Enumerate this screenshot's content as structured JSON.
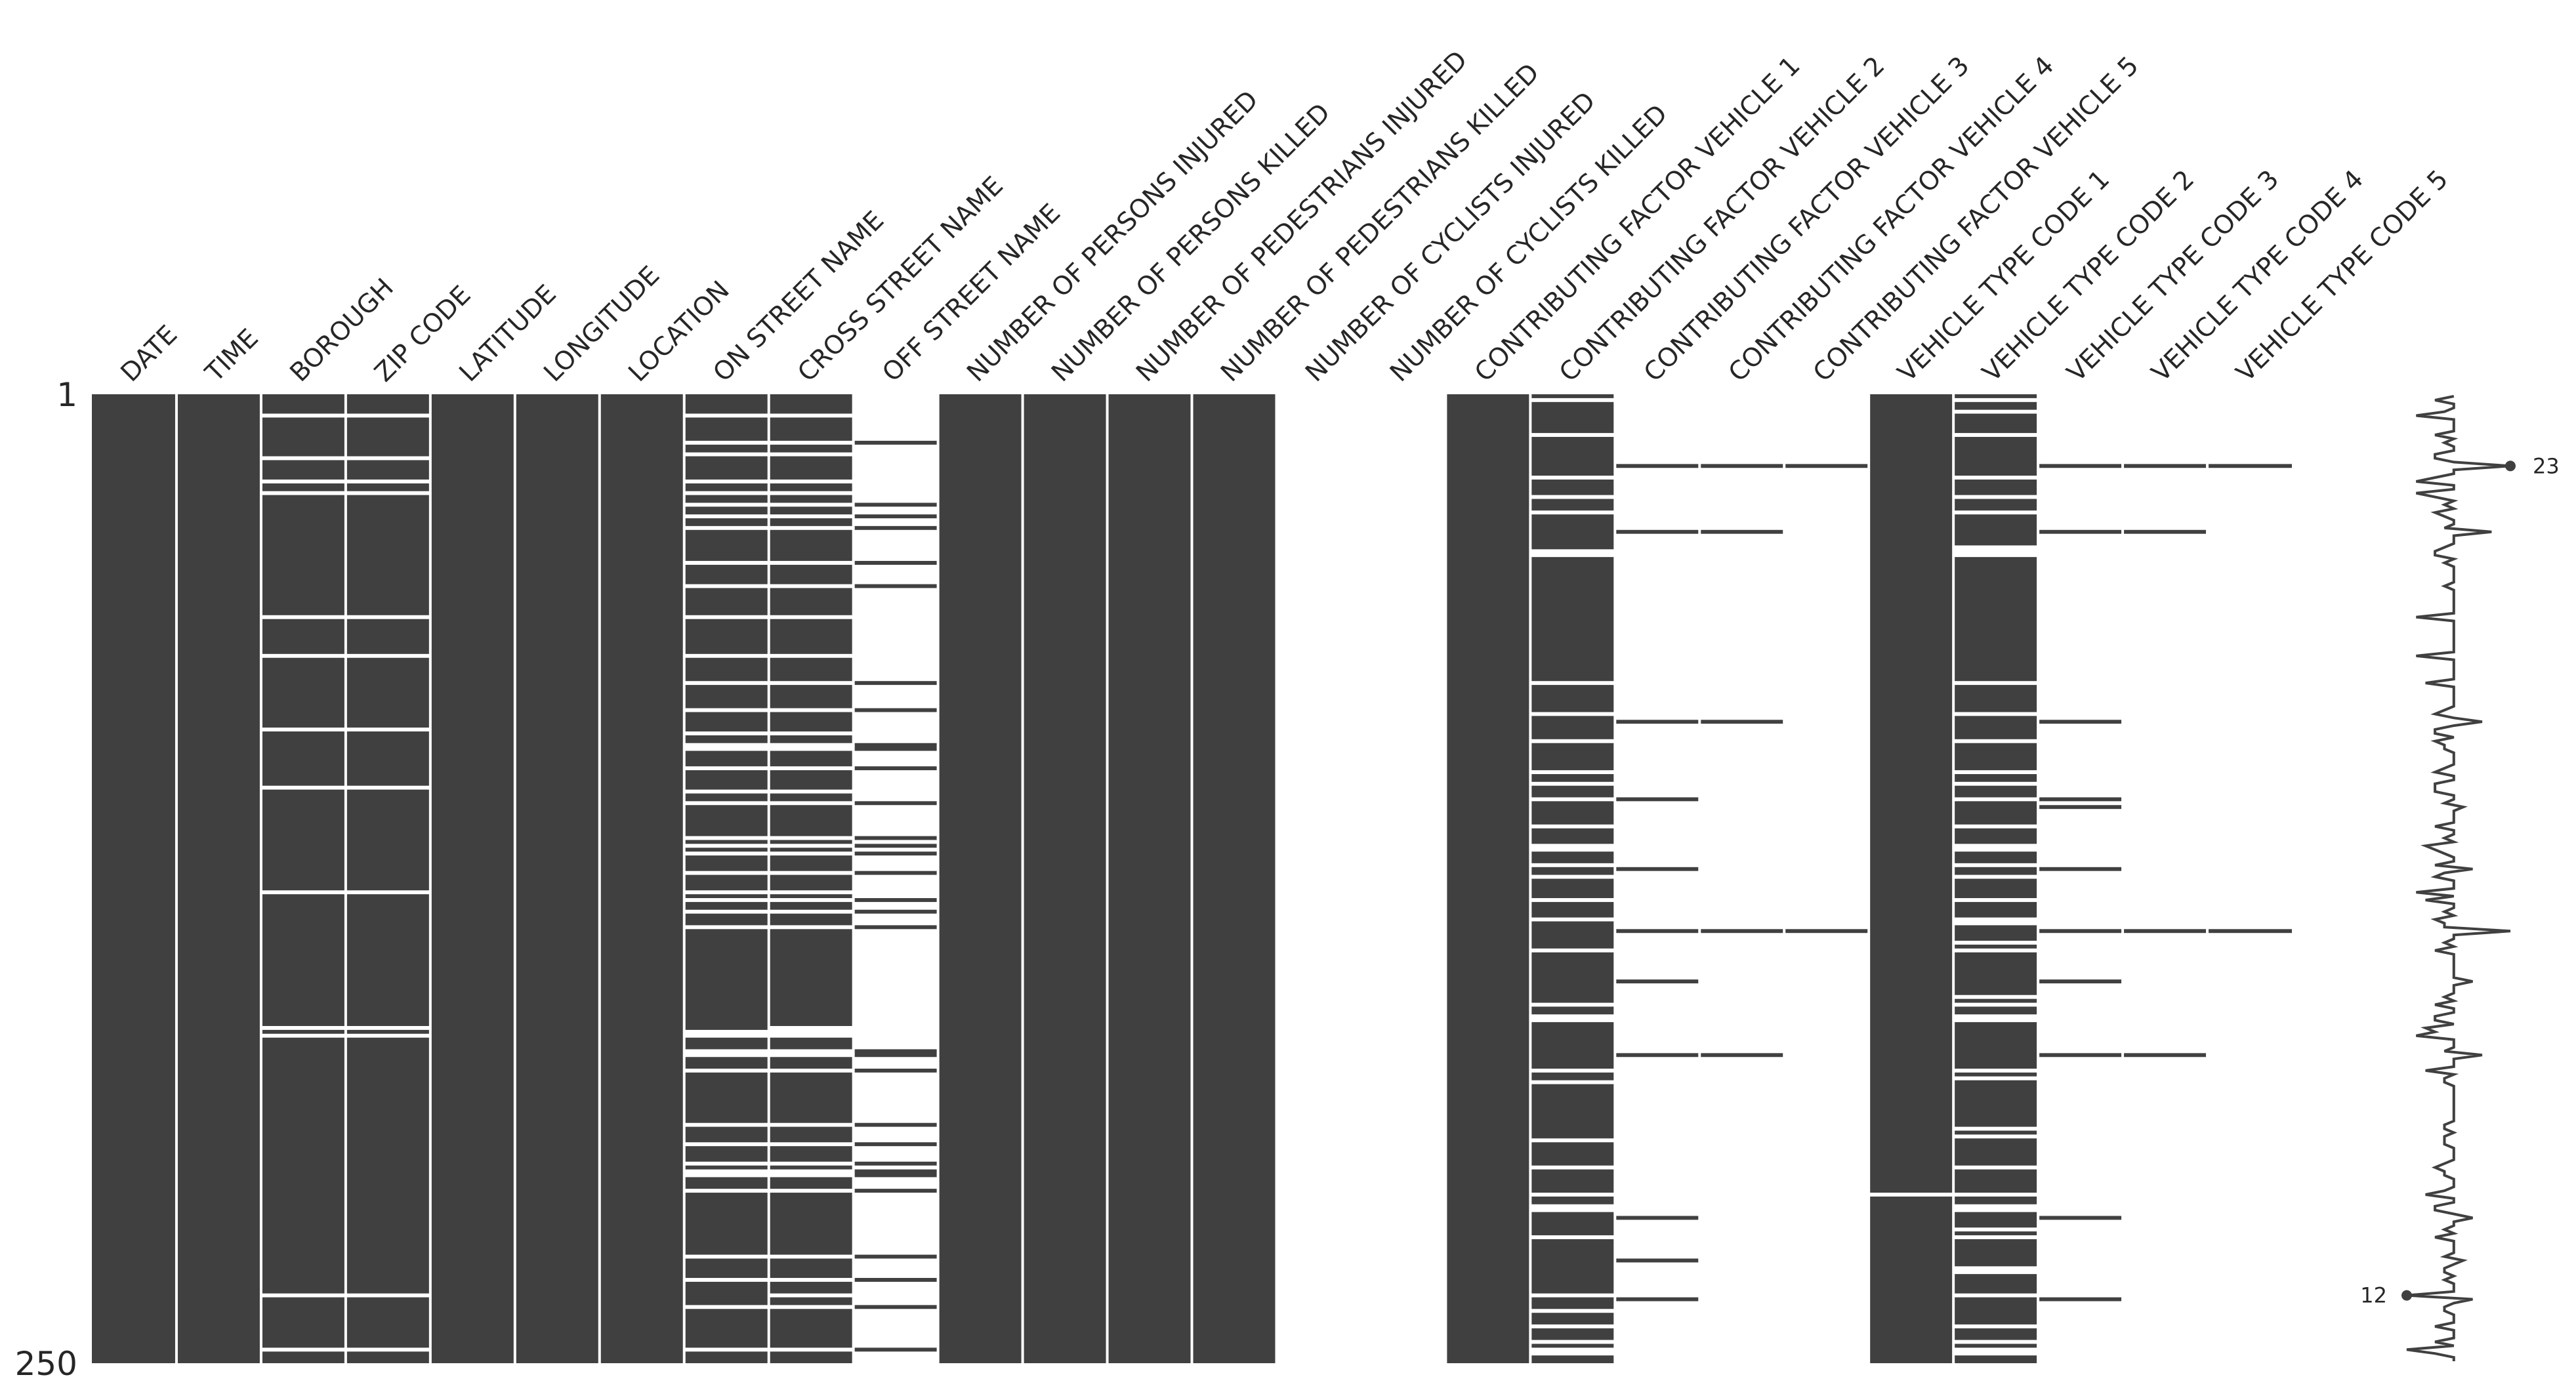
{
  "chart_data": {
    "type": "heatmap",
    "subtype": "missing-value matrix",
    "n_rows": 250,
    "ytick_labels": [
      "1",
      "250"
    ],
    "colors": {
      "present": "#404040",
      "missing": "#ffffff",
      "sparkline": "#404040"
    },
    "columns": [
      {
        "name": "DATE",
        "missing_rows": []
      },
      {
        "name": "TIME",
        "missing_rows": []
      },
      {
        "name": "BOROUGH",
        "missing_rows": [
          6,
          17,
          23,
          26,
          58,
          68,
          87,
          102,
          129,
          164,
          166,
          233,
          247
        ]
      },
      {
        "name": "ZIP CODE",
        "missing_rows": [
          6,
          17,
          23,
          26,
          58,
          68,
          87,
          102,
          129,
          164,
          166,
          233,
          247
        ]
      },
      {
        "name": "LATITUDE",
        "missing_rows": []
      },
      {
        "name": "LONGITUDE",
        "missing_rows": []
      },
      {
        "name": "LOCATION",
        "missing_rows": []
      },
      {
        "name": "ON STREET NAME",
        "missing_rows": [
          6,
          13,
          16,
          23,
          26,
          29,
          32,
          35,
          44,
          50,
          58,
          68,
          75,
          82,
          88,
          91,
          92,
          97,
          103,
          106,
          115,
          117,
          119,
          124,
          129,
          131,
          134,
          138,
          165,
          166,
          170,
          171,
          175,
          189,
          194,
          199,
          201,
          202,
          206,
          223,
          229,
          236,
          247
        ]
      },
      {
        "name": "CROSS STREET NAME",
        "missing_rows": [
          6,
          13,
          16,
          23,
          26,
          29,
          32,
          35,
          44,
          50,
          58,
          68,
          75,
          82,
          88,
          91,
          92,
          97,
          103,
          106,
          115,
          117,
          119,
          124,
          129,
          131,
          134,
          138,
          164,
          165,
          166,
          170,
          171,
          175,
          189,
          194,
          199,
          201,
          202,
          206,
          223,
          229,
          233,
          236,
          247
        ]
      },
      {
        "name": "OFF STREET NAME",
        "present_rows": [
          13,
          29,
          32,
          35,
          44,
          50,
          75,
          82,
          91,
          92,
          97,
          106,
          115,
          117,
          119,
          124,
          131,
          134,
          138,
          170,
          171,
          175,
          189,
          194,
          199,
          201,
          202,
          206,
          223,
          229,
          236,
          247
        ]
      },
      {
        "name": "NUMBER OF PERSONS INJURED",
        "missing_rows": []
      },
      {
        "name": "NUMBER OF PERSONS KILLED",
        "missing_rows": []
      },
      {
        "name": "NUMBER OF PEDESTRIANS INJURED",
        "missing_rows": []
      },
      {
        "name": "NUMBER OF PEDESTRIANS KILLED",
        "missing_rows": []
      },
      {
        "name": "NUMBER OF CYCLISTS INJURED",
        "present_rows": []
      },
      {
        "name": "NUMBER OF CYCLISTS KILLED",
        "present_rows": []
      },
      {
        "name": "CONTRIBUTING FACTOR VEHICLE 1",
        "missing_rows": []
      },
      {
        "name": "CONTRIBUTING FACTOR VEHICLE 2",
        "missing_rows": [
          2,
          11,
          22,
          27,
          31,
          41,
          42,
          75,
          83,
          90,
          98,
          101,
          105,
          112,
          117,
          118,
          122,
          125,
          131,
          136,
          144,
          158,
          161,
          162,
          175,
          178,
          193,
          200,
          207,
          210,
          211,
          218,
          233,
          237,
          241,
          245,
          247,
          248
        ]
      },
      {
        "name": "CONTRIBUTING FACTOR VEHICLE 3",
        "present_rows": [
          19,
          36,
          85,
          105,
          123,
          139,
          152,
          171,
          213,
          224,
          234
        ]
      },
      {
        "name": "CONTRIBUTING FACTOR VEHICLE 4",
        "present_rows": [
          19,
          36,
          85,
          139,
          171
        ]
      },
      {
        "name": "CONTRIBUTING FACTOR VEHICLE 5",
        "present_rows": [
          19,
          139
        ]
      },
      {
        "name": "VEHICLE TYPE CODE 1",
        "missing_rows": [
          207
        ]
      },
      {
        "name": "VEHICLE TYPE CODE 2",
        "missing_rows": [
          2,
          5,
          11,
          22,
          27,
          31,
          40,
          41,
          42,
          75,
          83,
          90,
          98,
          101,
          105,
          112,
          117,
          118,
          122,
          125,
          131,
          136,
          137,
          142,
          144,
          156,
          158,
          161,
          162,
          175,
          177,
          190,
          192,
          200,
          207,
          210,
          211,
          216,
          218,
          226,
          227,
          233,
          241,
          245,
          247,
          248
        ]
      },
      {
        "name": "VEHICLE TYPE CODE 3",
        "present_rows": [
          19,
          36,
          85,
          105,
          107,
          123,
          139,
          152,
          171,
          213,
          234
        ]
      },
      {
        "name": "VEHICLE TYPE CODE 4",
        "present_rows": [
          19,
          36,
          139,
          171
        ]
      },
      {
        "name": "VEHICLE TYPE CODE 5",
        "present_rows": [
          19,
          139
        ]
      }
    ],
    "sparkline": {
      "description_values": "row completeness (count of non-null columns per row)",
      "min": 12,
      "max": 23,
      "min_label": "12",
      "max_label": "23"
    }
  }
}
